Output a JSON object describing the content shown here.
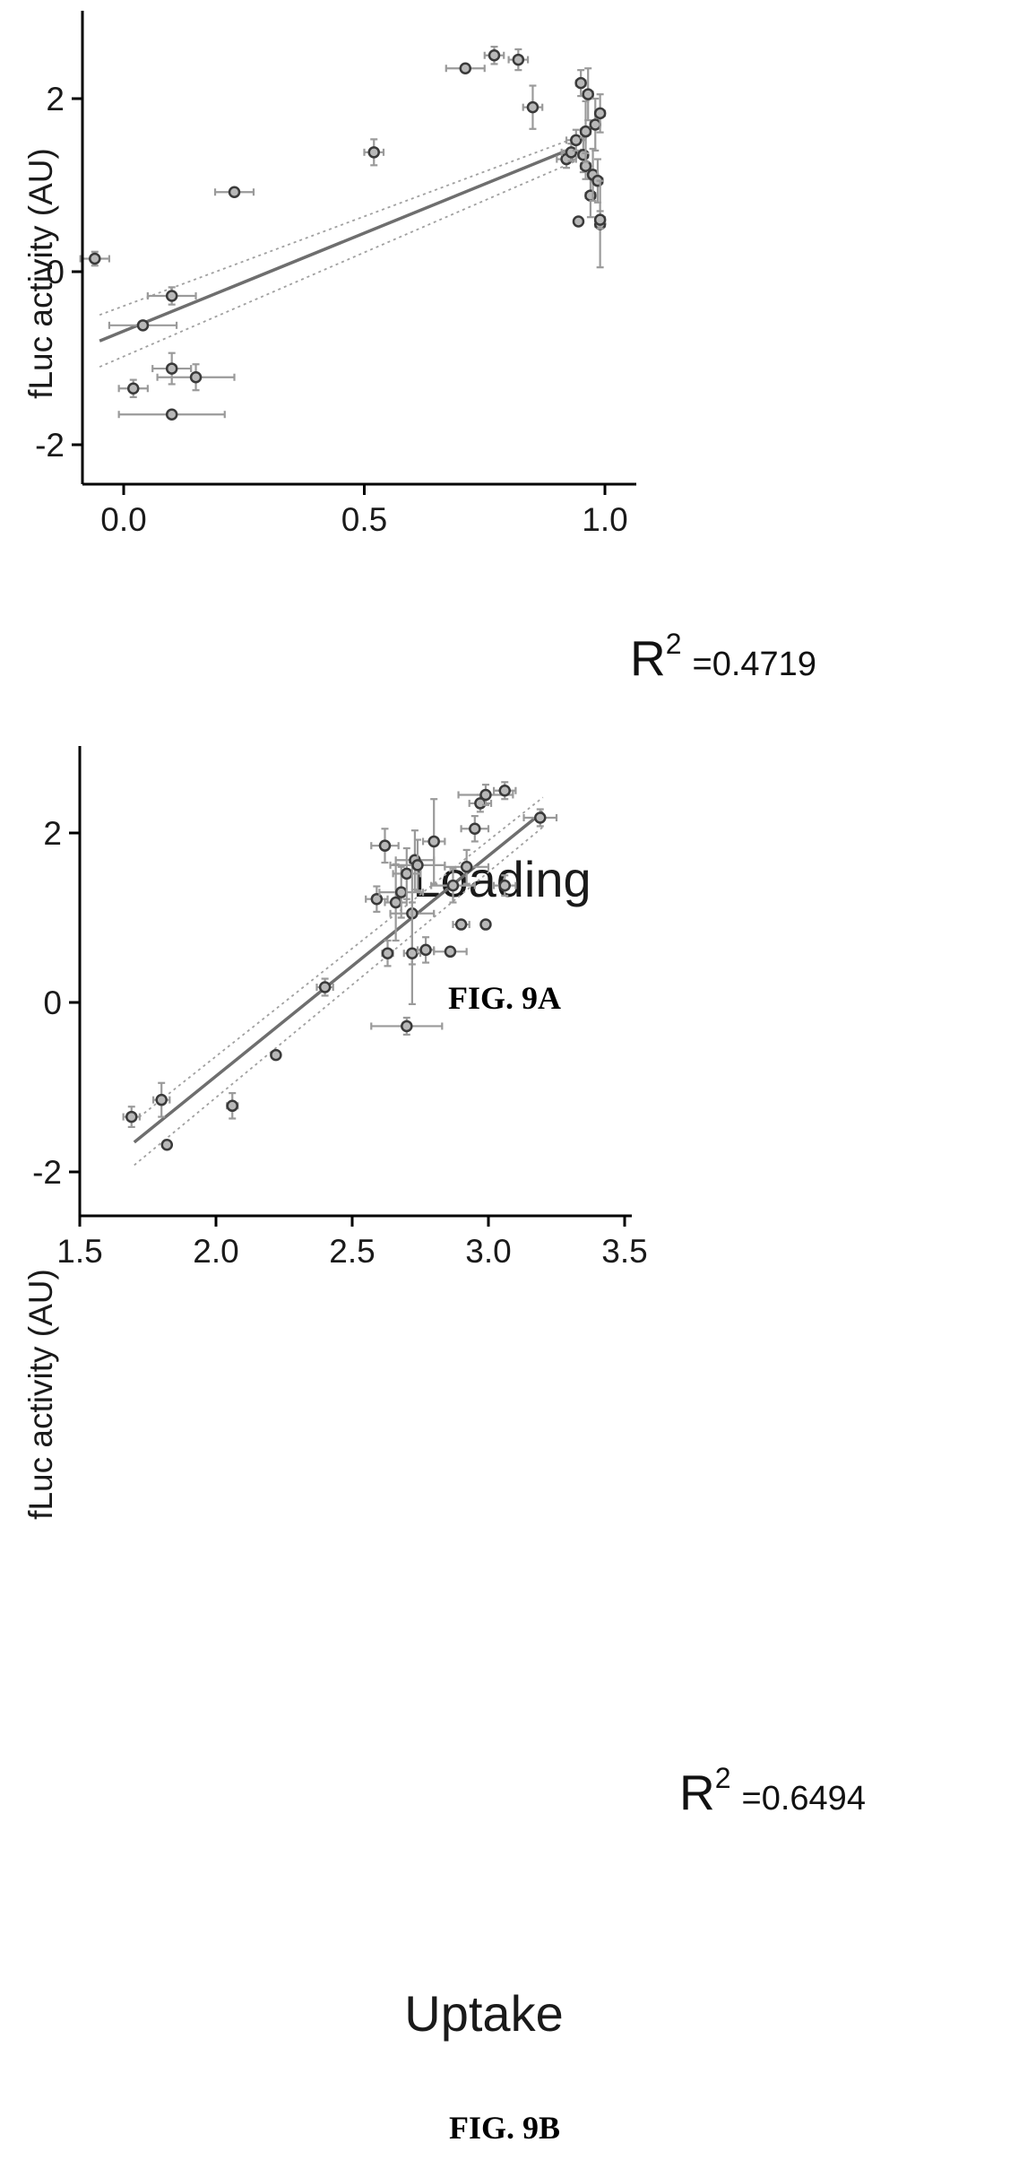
{
  "chart_data": [
    {
      "type": "scatter",
      "caption": "FIG. 9A",
      "xlabel": "Loading",
      "ylabel": "fLuc activity (AU)",
      "xlim": [
        -0.08,
        1.1
      ],
      "ylim": [
        -2.45,
        3.0
      ],
      "xticks": [
        0.0,
        0.5,
        1.0
      ],
      "xtick_labels": [
        "0.0",
        "0.5",
        "1.0"
      ],
      "yticks": [
        -2,
        0,
        2
      ],
      "ytick_labels": [
        "-2",
        "0",
        "2"
      ],
      "r2_label": "R",
      "r2_sup": "2",
      "r2_value": "=0.4719",
      "fit": {
        "x": [
          -0.05,
          0.93
        ],
        "y": [
          -0.8,
          1.42
        ]
      },
      "ci_upper": {
        "x": [
          -0.05,
          0.94
        ],
        "y": [
          -0.5,
          1.55
        ]
      },
      "ci_lower": {
        "x": [
          -0.05,
          0.94
        ],
        "y": [
          -1.1,
          1.28
        ]
      },
      "points": [
        {
          "x": -0.06,
          "y": 0.15,
          "xerr": 0.03,
          "yerr": 0.08
        },
        {
          "x": 0.04,
          "y": -0.62,
          "xerr": 0.07,
          "yerr": 0.0
        },
        {
          "x": 0.1,
          "y": -0.28,
          "xerr": 0.05,
          "yerr": 0.1
        },
        {
          "x": 0.1,
          "y": -1.12,
          "xerr": 0.04,
          "yerr": 0.18
        },
        {
          "x": 0.15,
          "y": -1.22,
          "xerr": 0.08,
          "yerr": 0.15
        },
        {
          "x": 0.02,
          "y": -1.35,
          "xerr": 0.03,
          "yerr": 0.1
        },
        {
          "x": 0.1,
          "y": -1.65,
          "xerr": 0.11,
          "yerr": 0.0
        },
        {
          "x": 0.23,
          "y": 0.92,
          "xerr": 0.04,
          "yerr": 0.0
        },
        {
          "x": 0.52,
          "y": 1.38,
          "xerr": 0.02,
          "yerr": 0.15
        },
        {
          "x": 0.71,
          "y": 2.35,
          "xerr": 0.04,
          "yerr": 0.0
        },
        {
          "x": 0.77,
          "y": 2.5,
          "xerr": 0.02,
          "yerr": 0.1
        },
        {
          "x": 0.82,
          "y": 2.45,
          "xerr": 0.02,
          "yerr": 0.12
        },
        {
          "x": 0.85,
          "y": 1.9,
          "xerr": 0.02,
          "yerr": 0.25
        },
        {
          "x": 0.92,
          "y": 1.3,
          "xerr": 0.02,
          "yerr": 0.1
        },
        {
          "x": 0.93,
          "y": 1.38,
          "xerr": 0.02,
          "yerr": 0.1
        },
        {
          "x": 0.94,
          "y": 1.52,
          "xerr": 0.02,
          "yerr": 0.12
        },
        {
          "x": 0.945,
          "y": 0.58,
          "xerr": 0.0,
          "yerr": 0.0
        },
        {
          "x": 0.95,
          "y": 2.18,
          "xerr": 0.01,
          "yerr": 0.15
        },
        {
          "x": 0.955,
          "y": 1.35,
          "xerr": 0.01,
          "yerr": 0.2
        },
        {
          "x": 0.96,
          "y": 1.22,
          "xerr": 0.01,
          "yerr": 0.15
        },
        {
          "x": 0.96,
          "y": 1.62,
          "xerr": 0.01,
          "yerr": 0.35
        },
        {
          "x": 0.965,
          "y": 2.05,
          "xerr": 0.01,
          "yerr": 0.3
        },
        {
          "x": 0.97,
          "y": 0.88,
          "xerr": 0.01,
          "yerr": 0.25
        },
        {
          "x": 0.975,
          "y": 1.12,
          "xerr": 0.01,
          "yerr": 0.3
        },
        {
          "x": 0.98,
          "y": 1.7,
          "xerr": 0.01,
          "yerr": 0.3
        },
        {
          "x": 0.985,
          "y": 1.05,
          "xerr": 0.01,
          "yerr": 0.25
        },
        {
          "x": 0.99,
          "y": 1.83,
          "xerr": 0.01,
          "yerr": 0.22
        },
        {
          "x": 0.99,
          "y": 0.55,
          "xerr": 0.01,
          "yerr": 0.5
        },
        {
          "x": 0.99,
          "y": 0.6,
          "xerr": 0.01,
          "yerr": 0.1
        }
      ]
    },
    {
      "type": "scatter",
      "caption": "FIG. 9B",
      "xlabel": "Uptake",
      "ylabel": "fLuc activity (AU)",
      "xlim": [
        1.5,
        3.5
      ],
      "ylim": [
        -2.5,
        3.0
      ],
      "xticks": [
        1.5,
        2.0,
        2.5,
        3.0,
        3.5
      ],
      "xtick_labels": [
        "1.5",
        "2.0",
        "2.5",
        "3.0",
        "3.5"
      ],
      "yticks": [
        -2,
        0,
        2
      ],
      "ytick_labels": [
        "-2",
        "0",
        "2"
      ],
      "r2_label": "R",
      "r2_sup": "2",
      "r2_value": "=0.6494",
      "fit": {
        "x": [
          1.7,
          3.2
        ],
        "y": [
          -1.65,
          2.25
        ]
      },
      "ci_upper": {
        "x": [
          1.7,
          3.2
        ],
        "y": [
          -1.4,
          2.42
        ]
      },
      "ci_lower": {
        "x": [
          1.7,
          3.2
        ],
        "y": [
          -1.92,
          2.07
        ]
      },
      "points": [
        {
          "x": 1.69,
          "y": -1.35,
          "xerr": 0.03,
          "yerr": 0.12
        },
        {
          "x": 1.8,
          "y": -1.15,
          "xerr": 0.03,
          "yerr": 0.2
        },
        {
          "x": 1.82,
          "y": -1.68,
          "xerr": 0.0,
          "yerr": 0.0
        },
        {
          "x": 2.06,
          "y": -1.22,
          "xerr": 0.02,
          "yerr": 0.15
        },
        {
          "x": 2.22,
          "y": -0.62,
          "xerr": 0.0,
          "yerr": 0.0
        },
        {
          "x": 2.4,
          "y": 0.18,
          "xerr": 0.03,
          "yerr": 0.1
        },
        {
          "x": 2.7,
          "y": -0.28,
          "xerr": 0.13,
          "yerr": 0.1
        },
        {
          "x": 2.59,
          "y": 1.22,
          "xerr": 0.04,
          "yerr": 0.15
        },
        {
          "x": 2.62,
          "y": 1.85,
          "xerr": 0.05,
          "yerr": 0.2
        },
        {
          "x": 2.63,
          "y": 0.58,
          "xerr": 0.02,
          "yerr": 0.15
        },
        {
          "x": 2.66,
          "y": 1.18,
          "xerr": 0.04,
          "yerr": 0.45
        },
        {
          "x": 2.68,
          "y": 1.3,
          "xerr": 0.08,
          "yerr": 0.3
        },
        {
          "x": 2.7,
          "y": 1.52,
          "xerr": 0.05,
          "yerr": 0.3
        },
        {
          "x": 2.72,
          "y": 1.05,
          "xerr": 0.08,
          "yerr": 0.6
        },
        {
          "x": 2.72,
          "y": 0.58,
          "xerr": 0.03,
          "yerr": 0.6
        },
        {
          "x": 2.73,
          "y": 1.68,
          "xerr": 0.07,
          "yerr": 0.35
        },
        {
          "x": 2.74,
          "y": 1.62,
          "xerr": 0.1,
          "yerr": 0.3
        },
        {
          "x": 2.77,
          "y": 0.62,
          "xerr": 0.03,
          "yerr": 0.15
        },
        {
          "x": 2.8,
          "y": 1.9,
          "xerr": 0.04,
          "yerr": 0.5
        },
        {
          "x": 2.87,
          "y": 1.38,
          "xerr": 0.08,
          "yerr": 0.2
        },
        {
          "x": 2.86,
          "y": 0.6,
          "xerr": 0.06,
          "yerr": 0.0
        },
        {
          "x": 2.9,
          "y": 0.92,
          "xerr": 0.03,
          "yerr": 0.0
        },
        {
          "x": 2.92,
          "y": 1.6,
          "xerr": 0.08,
          "yerr": 0.2
        },
        {
          "x": 2.95,
          "y": 2.05,
          "xerr": 0.05,
          "yerr": 0.15
        },
        {
          "x": 2.97,
          "y": 2.35,
          "xerr": 0.04,
          "yerr": 0.1
        },
        {
          "x": 2.99,
          "y": 2.45,
          "xerr": 0.1,
          "yerr": 0.12
        },
        {
          "x": 2.99,
          "y": 0.92,
          "xerr": 0.0,
          "yerr": 0.0
        },
        {
          "x": 3.06,
          "y": 2.5,
          "xerr": 0.04,
          "yerr": 0.1
        },
        {
          "x": 3.06,
          "y": 1.38,
          "xerr": 0.04,
          "yerr": 0.12
        },
        {
          "x": 3.19,
          "y": 2.18,
          "xerr": 0.06,
          "yerr": 0.1
        }
      ]
    }
  ]
}
